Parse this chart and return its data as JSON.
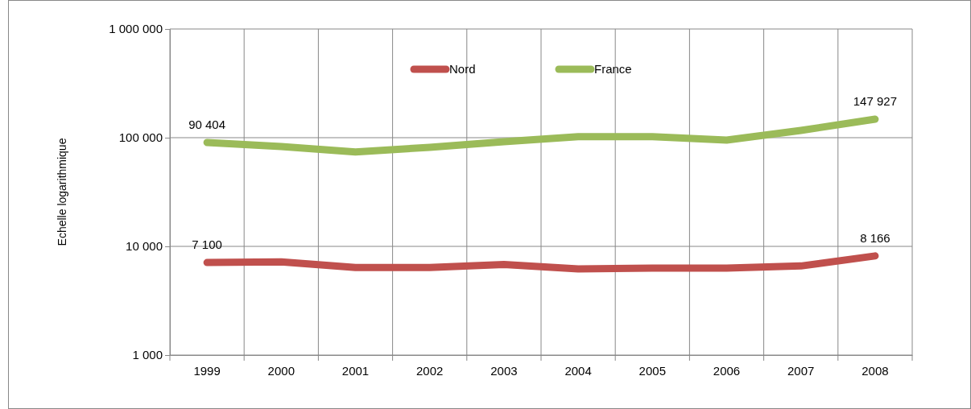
{
  "chart_data": {
    "type": "line",
    "ylabel": "Echelle logarithmique",
    "categories": [
      "1999",
      "2000",
      "2001",
      "2002",
      "2003",
      "2004",
      "2005",
      "2006",
      "2007",
      "2008"
    ],
    "series": [
      {
        "name": "Nord",
        "color": "#c0504d",
        "values": [
          7100,
          7200,
          6400,
          6400,
          6800,
          6200,
          6300,
          6300,
          6600,
          8166
        ],
        "value_labels": [
          "7 100",
          null,
          null,
          null,
          null,
          null,
          null,
          null,
          null,
          "8 166"
        ]
      },
      {
        "name": "France",
        "color": "#9bbb59",
        "values": [
          90404,
          83000,
          74000,
          81500,
          92000,
          102000,
          102000,
          95000,
          116600,
          147927
        ],
        "value_labels": [
          "90 404",
          null,
          null,
          null,
          null,
          null,
          null,
          null,
          null,
          "147 927"
        ]
      }
    ],
    "log": "y",
    "ylim": [
      1000,
      1000000
    ],
    "yticks": [
      {
        "value": 1000,
        "label": "1 000"
      },
      {
        "value": 10000,
        "label": "10 000"
      },
      {
        "value": 100000,
        "label": "100 000"
      },
      {
        "value": 1000000,
        "label": "1 000 000"
      }
    ],
    "grid": true,
    "legend": "top",
    "marker": "none",
    "line_style": "solid"
  }
}
